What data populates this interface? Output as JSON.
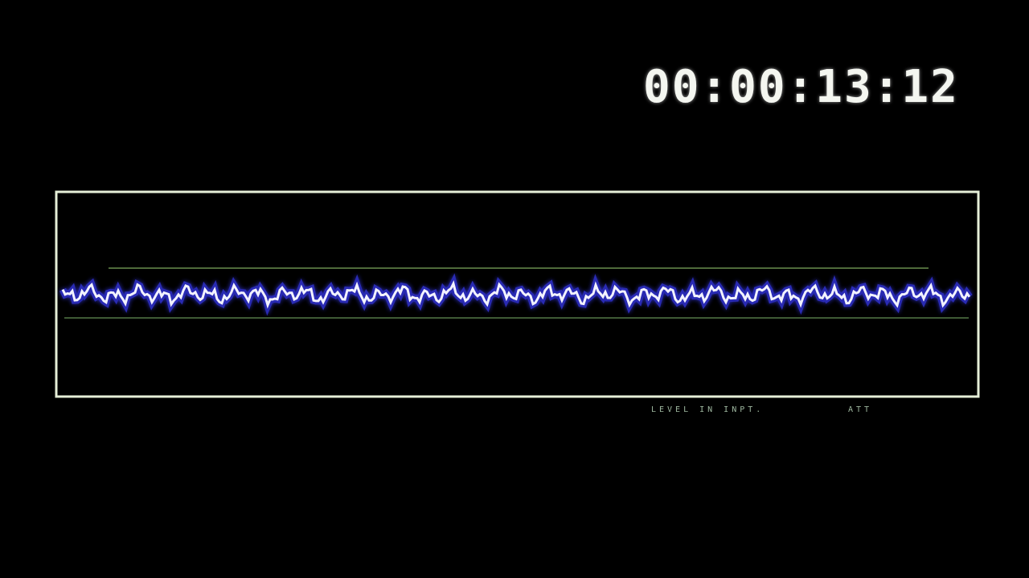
{
  "display": {
    "timecode": "00:00:13:12",
    "status_label": "LEVEL IN INPT.",
    "status_value": "ATT"
  }
}
